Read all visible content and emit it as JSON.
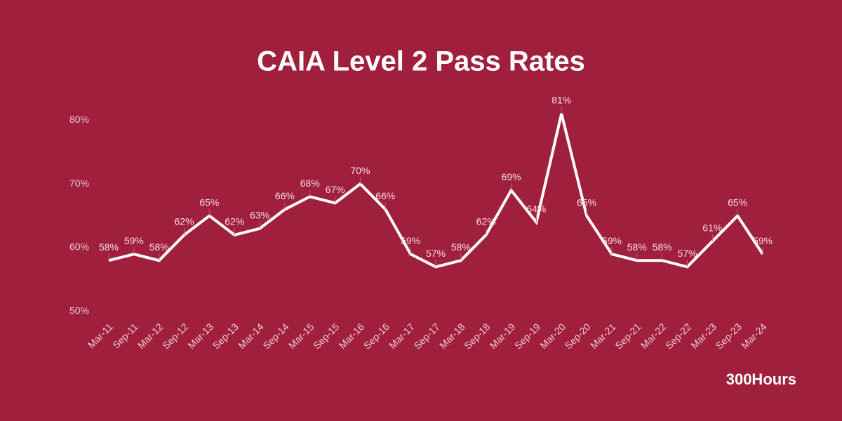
{
  "chart_data": {
    "type": "line",
    "title": "CAIA Level 2 Pass Rates",
    "footer": "300Hours",
    "background": "#a01f3d",
    "color": "#ffffff",
    "categories": [
      "Mar-11",
      "Sep-11",
      "Mar-12",
      "Sep-12",
      "Mar-13",
      "Sep-13",
      "Mar-14",
      "Sep-14",
      "Mar-15",
      "Sep-15",
      "Mar-16",
      "Sep-16",
      "Mar-17",
      "Sep-17",
      "Mar-18",
      "Sep-18",
      "Mar-19",
      "Sep-19",
      "Mar-20",
      "Sep-20",
      "Mar-21",
      "Sep-21",
      "Mar-22",
      "Sep-22",
      "Mar-23",
      "Sep-23",
      "Mar-24"
    ],
    "values": [
      58,
      59,
      58,
      62,
      65,
      62,
      63,
      66,
      68,
      67,
      70,
      66,
      59,
      57,
      58,
      62,
      69,
      64,
      81,
      65,
      59,
      58,
      58,
      57,
      61,
      65,
      59
    ],
    "value_labels": [
      "58%",
      "59%",
      "58%",
      "62%",
      "65%",
      "62%",
      "63%",
      "66%",
      "68%",
      "67%",
      "70%",
      "66%",
      "59%",
      "57%",
      "58%",
      "62%",
      "69%",
      "64%",
      "81%",
      "65%",
      "59%",
      "58%",
      "58%",
      "57%",
      "61%",
      "65%",
      "59%"
    ],
    "ylim": [
      50,
      81
    ],
    "yticks": [
      {
        "value": 50,
        "label": "50%"
      },
      {
        "value": 60,
        "label": "60%"
      },
      {
        "value": 70,
        "label": "70%"
      },
      {
        "value": 80,
        "label": "80%"
      }
    ],
    "grid": false
  }
}
